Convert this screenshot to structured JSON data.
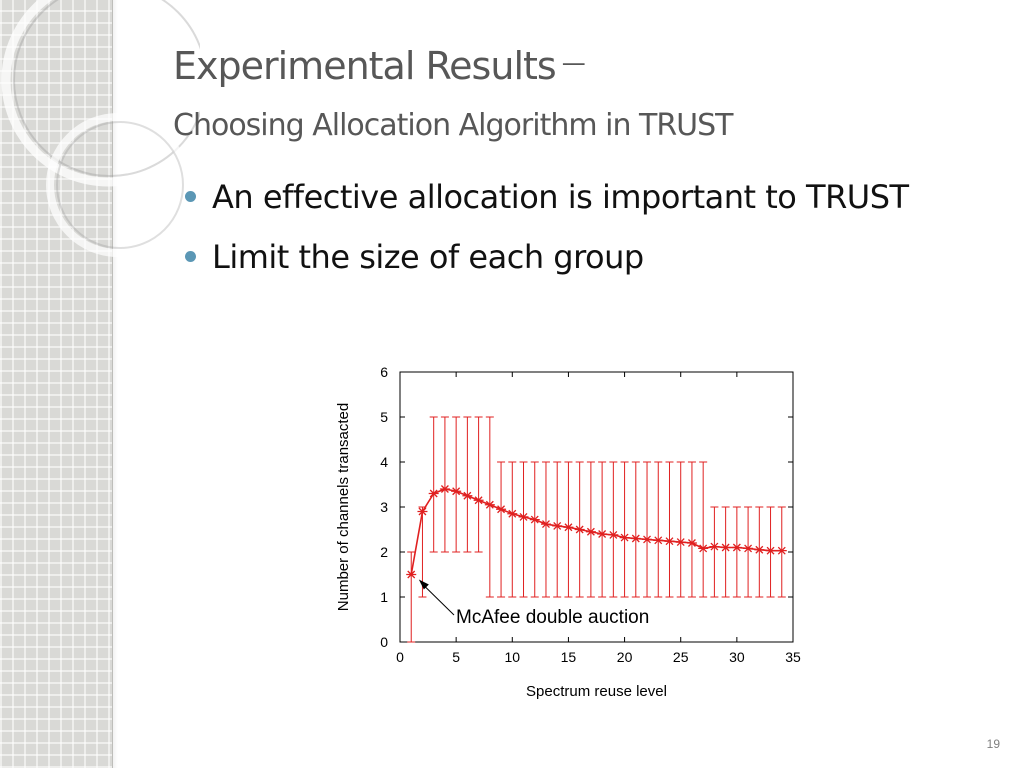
{
  "slide": {
    "title": "Experimental Results",
    "title_dash": "—",
    "subtitle": "Choosing Allocation Algorithm in TRUST",
    "bullets": [
      "An effective allocation is important to TRUST",
      "Limit the size of each group"
    ],
    "page_number": "19",
    "colors": {
      "sidebar": "#d9d9d6",
      "title": "#575757",
      "bullet": "#5b97b5",
      "series": "#e02020"
    }
  },
  "chart_data": {
    "type": "line",
    "xlabel": "Spectrum reuse level",
    "ylabel": "Number of channels transacted",
    "xlim": [
      0,
      35
    ],
    "ylim": [
      0,
      6
    ],
    "xticks": [
      0,
      5,
      10,
      15,
      20,
      25,
      30,
      35
    ],
    "yticks": [
      0,
      1,
      2,
      3,
      4,
      5,
      6
    ],
    "grid": false,
    "series": [
      {
        "x": [
          1,
          2,
          3,
          4,
          5,
          6,
          7,
          8,
          9,
          10,
          11,
          12,
          13,
          14,
          15,
          16,
          17,
          18,
          19,
          20,
          21,
          22,
          23,
          24,
          25,
          26,
          27,
          28,
          29,
          30,
          31,
          32,
          33,
          34
        ],
        "y": [
          1.5,
          2.9,
          3.3,
          3.4,
          3.35,
          3.25,
          3.15,
          3.05,
          2.95,
          2.85,
          2.78,
          2.72,
          2.62,
          2.58,
          2.55,
          2.5,
          2.45,
          2.4,
          2.38,
          2.32,
          2.3,
          2.28,
          2.26,
          2.24,
          2.22,
          2.2,
          2.08,
          2.12,
          2.1,
          2.1,
          2.08,
          2.05,
          2.03,
          2.03
        ],
        "error_low": [
          0,
          1,
          2,
          2,
          2,
          2,
          2,
          1,
          1,
          1,
          1,
          1,
          1,
          1,
          1,
          1,
          1,
          1,
          1,
          1,
          1,
          1,
          1,
          1,
          1,
          1,
          1,
          1,
          1,
          1,
          1,
          1,
          1,
          1
        ],
        "error_high": [
          2,
          3,
          5,
          5,
          5,
          5,
          5,
          5,
          4,
          4,
          4,
          4,
          4,
          4,
          4,
          4,
          4,
          4,
          4,
          4,
          4,
          4,
          4,
          4,
          4,
          4,
          4,
          3,
          3,
          3,
          3,
          3,
          3,
          3
        ]
      }
    ],
    "annotation": {
      "text": "McAfee double auction",
      "x": 1.5,
      "y": 1.5
    }
  }
}
